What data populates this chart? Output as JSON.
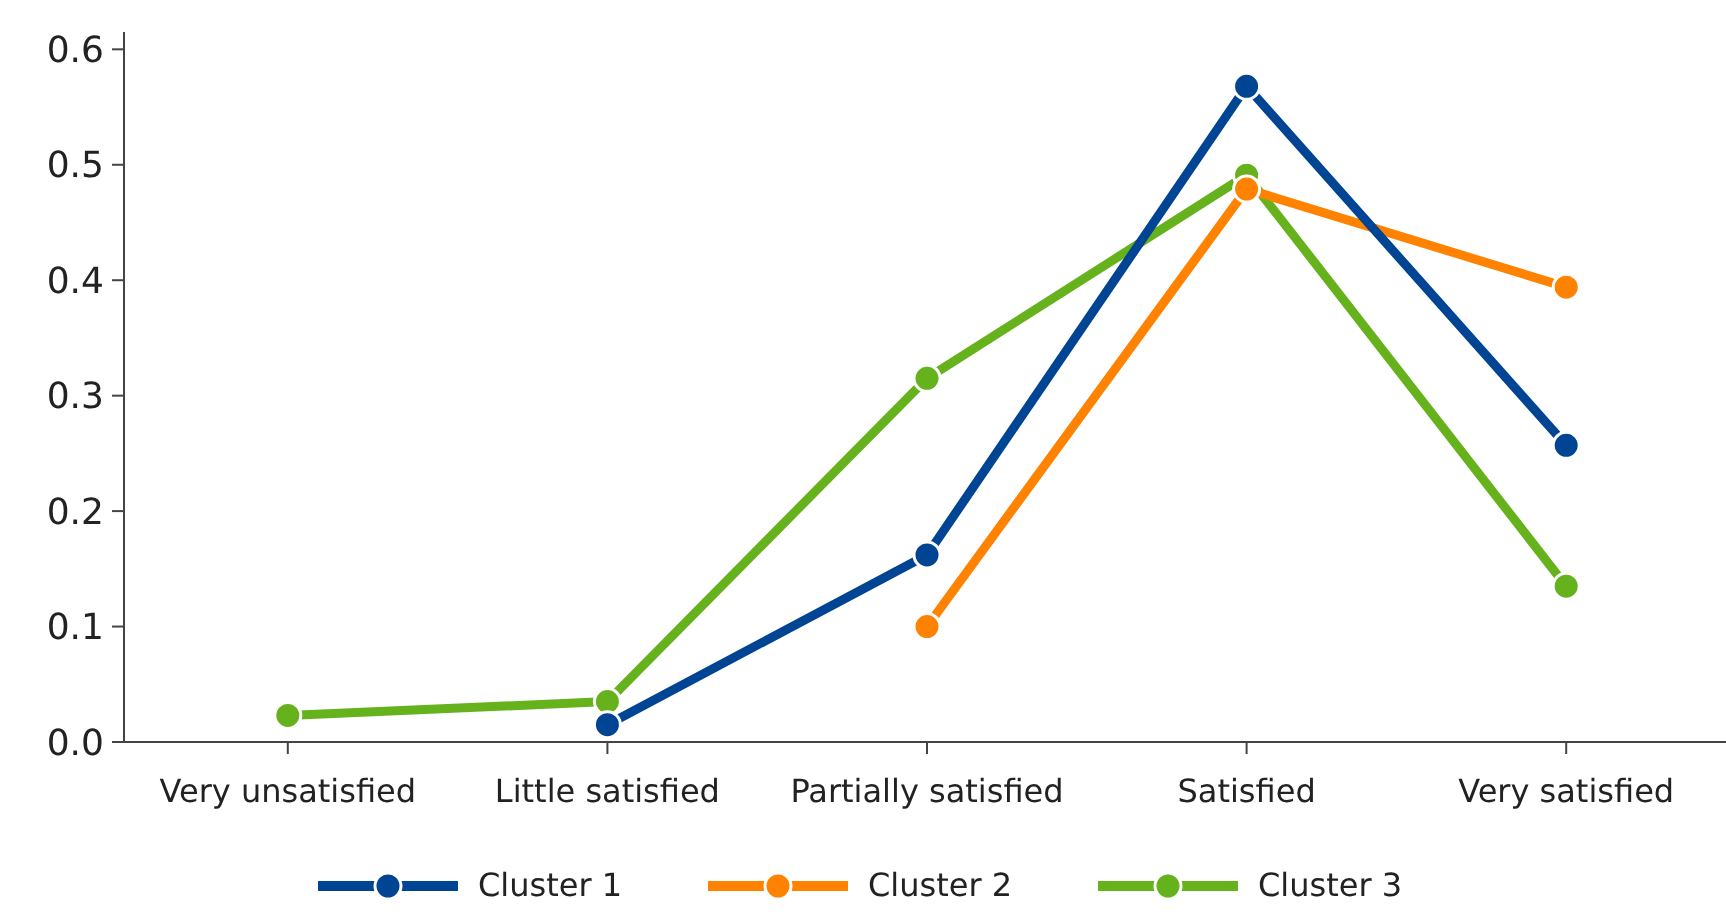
{
  "chart_data": {
    "type": "line",
    "categories": [
      "Very unsatisfied",
      "Little satisfied",
      "Partially satisfied",
      "Satisfied",
      "Very satisfied"
    ],
    "series": [
      {
        "name": "Cluster 1",
        "color": "#004494",
        "values": [
          null,
          0.015,
          0.162,
          0.568,
          0.257
        ]
      },
      {
        "name": "Cluster 2",
        "color": "#ff8200",
        "values": [
          null,
          null,
          0.1,
          0.479,
          0.394
        ]
      },
      {
        "name": "Cluster 3",
        "color": "#66b21d",
        "values": [
          0.023,
          0.035,
          0.315,
          0.491,
          0.135
        ]
      }
    ],
    "ylim": [
      0,
      0.615
    ],
    "yticks": [
      {
        "value": 0,
        "label": "0.0"
      },
      {
        "value": 0.1,
        "label": "0.1"
      },
      {
        "value": 0.2,
        "label": "0.2"
      },
      {
        "value": 0.3,
        "label": "0.3"
      },
      {
        "value": 0.4,
        "label": "0.4"
      },
      {
        "value": 0.5,
        "label": "0.5"
      },
      {
        "value": 0.6,
        "label": "0.6"
      }
    ],
    "grid": false,
    "legend": "bottom",
    "marker": "circle",
    "line_style": "solid"
  }
}
